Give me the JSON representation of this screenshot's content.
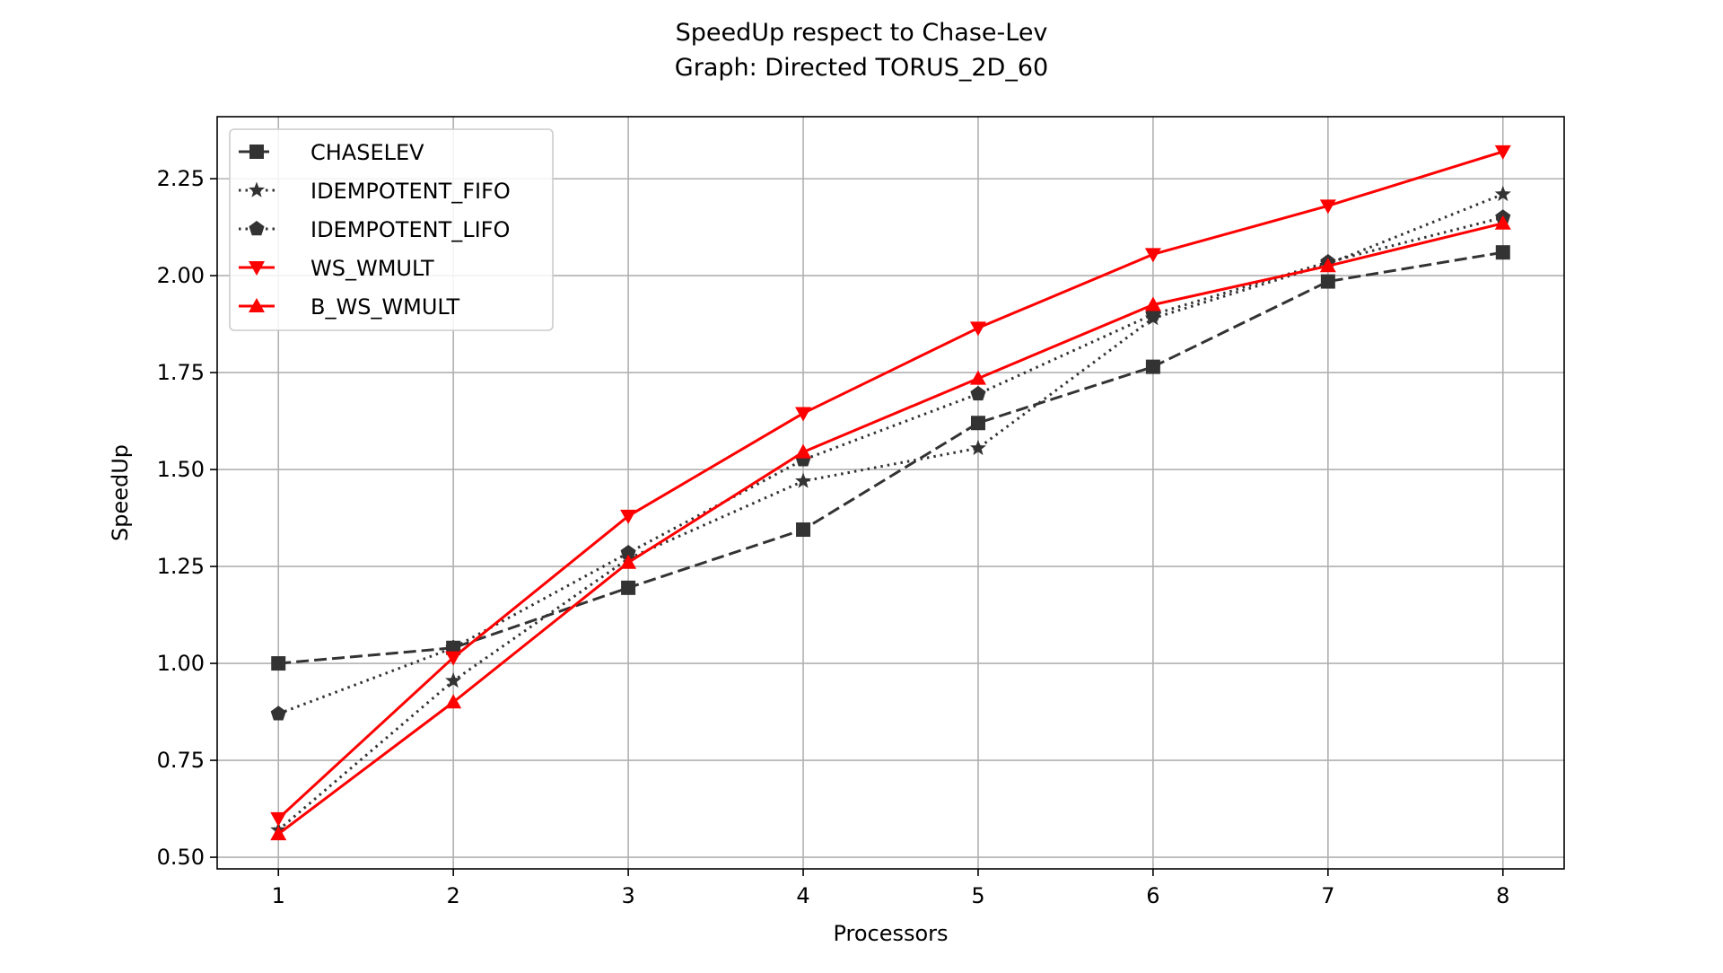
{
  "chart_data": {
    "type": "line",
    "title": "SpeedUp respect to Chase-Lev",
    "subtitle": "Graph: Directed TORUS_2D_60",
    "xlabel": "Processors",
    "ylabel": "SpeedUp",
    "x": [
      1,
      2,
      3,
      4,
      5,
      6,
      7,
      8
    ],
    "xlim": [
      0.65,
      8.35
    ],
    "ylim": [
      0.47,
      2.41
    ],
    "xticks": [
      "1",
      "2",
      "3",
      "4",
      "5",
      "6",
      "7",
      "8"
    ],
    "yticks": [
      "0.50",
      "0.75",
      "1.00",
      "1.25",
      "1.50",
      "1.75",
      "2.00",
      "2.25"
    ],
    "ytick_values": [
      0.5,
      0.75,
      1.0,
      1.25,
      1.5,
      1.75,
      2.0,
      2.25
    ],
    "grid": true,
    "legend_position": "top-left",
    "series": [
      {
        "name": "CHASELEV",
        "color": "#333333",
        "dash": "dashed",
        "marker": "square",
        "values": [
          1.0,
          1.04,
          1.195,
          1.345,
          1.62,
          1.765,
          1.985,
          2.06
        ]
      },
      {
        "name": "IDEMPOTENT_FIFO",
        "color": "#333333",
        "dash": "dotted",
        "marker": "star",
        "values": [
          0.57,
          0.955,
          1.27,
          1.47,
          1.555,
          1.89,
          2.03,
          2.21
        ]
      },
      {
        "name": "IDEMPOTENT_LIFO",
        "color": "#333333",
        "dash": "dotted",
        "marker": "pentagon",
        "values": [
          0.87,
          1.04,
          1.285,
          1.525,
          1.695,
          1.9,
          2.035,
          2.15
        ]
      },
      {
        "name": "WS_WMULT",
        "color": "#ff0000",
        "dash": "solid",
        "marker": "triangle-down",
        "values": [
          0.6,
          1.015,
          1.38,
          1.645,
          1.865,
          2.055,
          2.18,
          2.32
        ]
      },
      {
        "name": "B_WS_WMULT",
        "color": "#ff0000",
        "dash": "solid",
        "marker": "triangle-up",
        "values": [
          0.56,
          0.9,
          1.26,
          1.545,
          1.735,
          1.925,
          2.025,
          2.135
        ]
      }
    ]
  }
}
